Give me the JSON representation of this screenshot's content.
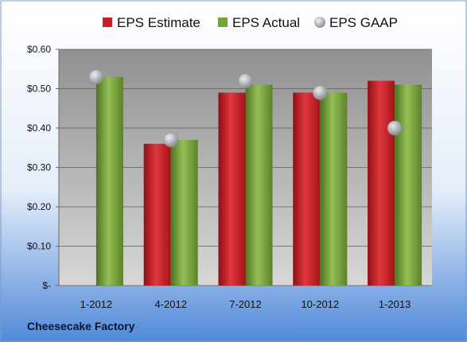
{
  "footer": {
    "company": "Cheesecake Factory"
  },
  "colors": {
    "estimate": "#c81e26",
    "actual": "#76a03a",
    "gaap": "#b8bcc6",
    "bg_top": "#ffffff",
    "bg_bottom": "#4f89d9",
    "plot_top": "#909090",
    "plot_bottom": "#d7d7d7"
  },
  "chart_data": {
    "type": "bar",
    "categories": [
      "1-2012",
      "4-2012",
      "7-2012",
      "10-2012",
      "1-2013"
    ],
    "series": [
      {
        "name": "EPS Estimate",
        "kind": "bar",
        "values": [
          null,
          0.36,
          0.49,
          0.49,
          0.52
        ]
      },
      {
        "name": "EPS Actual",
        "kind": "bar",
        "values": [
          0.53,
          0.37,
          0.51,
          0.49,
          0.51
        ]
      },
      {
        "name": "EPS GAAP",
        "kind": "scatter",
        "values": [
          0.53,
          0.37,
          0.52,
          0.49,
          0.4
        ]
      }
    ],
    "ylim": [
      0,
      0.6
    ],
    "yticks": [
      0,
      0.1,
      0.2,
      0.3,
      0.4,
      0.5,
      0.6
    ],
    "ytick_labels": [
      "$-",
      "$0.10",
      "$0.20",
      "$0.30",
      "$0.40",
      "$0.50",
      "$0.60"
    ],
    "grid": true,
    "legend": "top"
  }
}
